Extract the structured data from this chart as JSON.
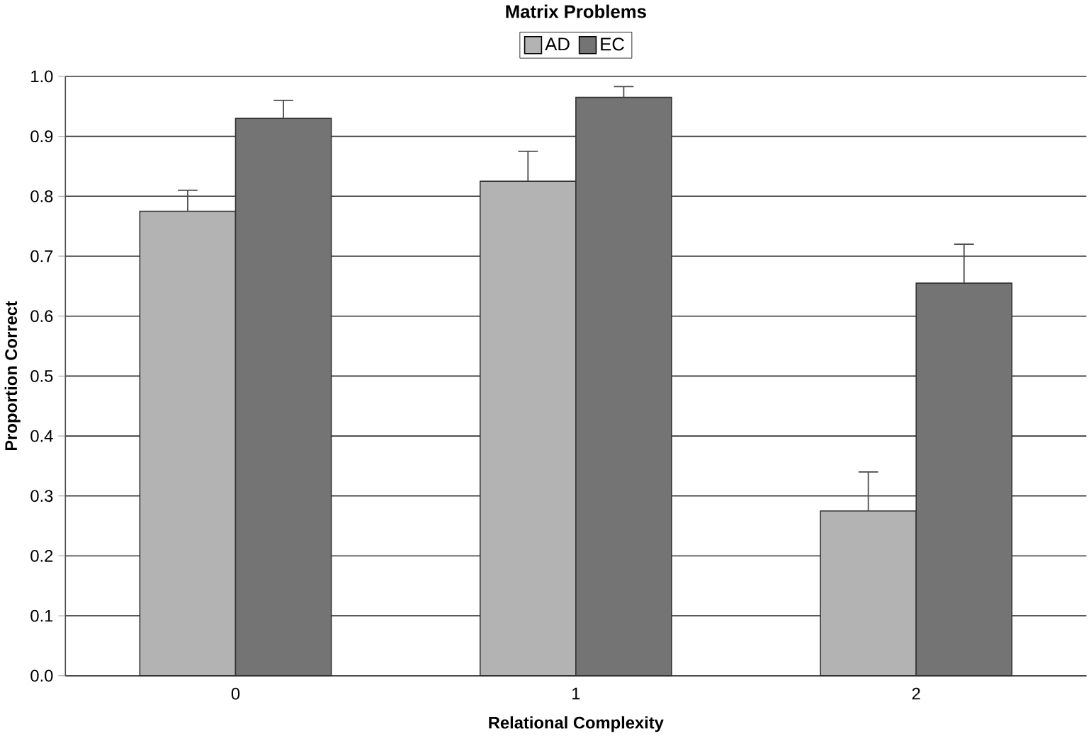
{
  "chart_data": {
    "type": "bar",
    "title": "Matrix Problems",
    "xlabel": "Relational Complexity",
    "ylabel": "Proportion Correct",
    "categories": [
      "0",
      "1",
      "2"
    ],
    "series": [
      {
        "name": "AD",
        "color": "#b3b3b3",
        "values": [
          0.775,
          0.825,
          0.275
        ],
        "errors": [
          [
            0.775,
            0.81
          ],
          [
            0.825,
            0.875
          ],
          [
            0.275,
            0.34
          ]
        ]
      },
      {
        "name": "EC",
        "color": "#747474",
        "values": [
          0.93,
          0.965,
          0.655
        ],
        "errors": [
          [
            0.93,
            0.96
          ],
          [
            0.965,
            0.983
          ],
          [
            0.655,
            0.72
          ]
        ]
      }
    ],
    "ylim": [
      0,
      1
    ],
    "yticks": [
      {
        "value": 0,
        "label": "0.0"
      },
      {
        "value": 0.1,
        "label": "0.1"
      },
      {
        "value": 0.2,
        "label": "0.2"
      },
      {
        "value": 0.3,
        "label": "0.3"
      },
      {
        "value": 0.4,
        "label": "0.4"
      },
      {
        "value": 0.5,
        "label": "0.5"
      },
      {
        "value": 0.6,
        "label": "0.6"
      },
      {
        "value": 0.7,
        "label": "0.7"
      },
      {
        "value": 0.8,
        "label": "0.8"
      },
      {
        "value": 0.9,
        "label": "0.9"
      },
      {
        "value": 1,
        "label": "1.0"
      }
    ],
    "grid": "y",
    "legend": "top"
  }
}
